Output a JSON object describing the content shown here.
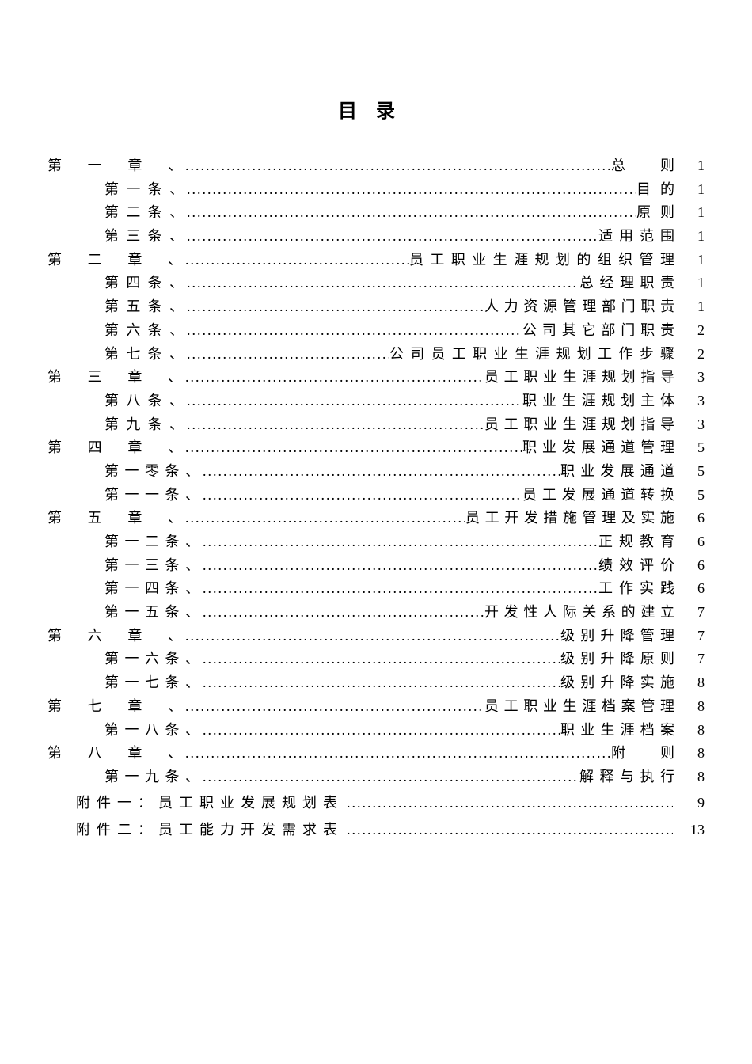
{
  "title": "目录",
  "entries": [
    {
      "indent": 0,
      "label": "第一章、",
      "label_width": 170,
      "suffix": "总　则",
      "suffix_width": 80,
      "page": "1"
    },
    {
      "indent": 1,
      "label": "第一条、",
      "label_width": 100,
      "suffix": "目的",
      "suffix_width": 48,
      "page": "1"
    },
    {
      "indent": 1,
      "label": "第二条、",
      "label_width": 100,
      "suffix": "原则",
      "suffix_width": 48,
      "page": "1"
    },
    {
      "indent": 1,
      "label": "第三条、",
      "label_width": 100,
      "suffix": "适用范围",
      "suffix_width": 96,
      "page": "1"
    },
    {
      "indent": 0,
      "label": "第二章、",
      "label_width": 170,
      "suffix": "员工职业生涯规划的组织管理",
      "suffix_width": 335,
      "page": "1"
    },
    {
      "indent": 1,
      "label": "第四条、",
      "label_width": 100,
      "suffix": "总经理职责",
      "suffix_width": 120,
      "page": "1"
    },
    {
      "indent": 1,
      "label": "第五条、",
      "label_width": 100,
      "suffix": "人力资源管理部门职责",
      "suffix_width": 240,
      "page": "1"
    },
    {
      "indent": 1,
      "label": "第六条、",
      "label_width": 100,
      "suffix": "公司其它部门职责",
      "suffix_width": 192,
      "page": "2"
    },
    {
      "indent": 1,
      "label": "第七条、",
      "label_width": 100,
      "suffix": "公司员工职业生涯规划工作步骤",
      "suffix_width": 360,
      "page": "2"
    },
    {
      "indent": 0,
      "label": "第三章、",
      "label_width": 170,
      "suffix": "员工职业生涯规划指导",
      "suffix_width": 240,
      "page": "3"
    },
    {
      "indent": 1,
      "label": "第八条、",
      "label_width": 100,
      "suffix": "职业生涯规划主体",
      "suffix_width": 192,
      "page": "3"
    },
    {
      "indent": 1,
      "label": "第九条、",
      "label_width": 100,
      "suffix": "员工职业生涯规划指导",
      "suffix_width": 240,
      "page": "3"
    },
    {
      "indent": 0,
      "label": "第四章、",
      "label_width": 170,
      "suffix": "职业发展通道管理",
      "suffix_width": 192,
      "page": "5"
    },
    {
      "indent": 1,
      "label": "第一零条、",
      "label_width": 120,
      "suffix": "职业发展通道",
      "suffix_width": 144,
      "page": "5"
    },
    {
      "indent": 1,
      "label": "第一一条、",
      "label_width": 120,
      "suffix": "员工发展通道转换",
      "suffix_width": 192,
      "page": "5"
    },
    {
      "indent": 0,
      "label": "第五章、",
      "label_width": 170,
      "suffix": "员工开发措施管理及实施",
      "suffix_width": 264,
      "page": "6"
    },
    {
      "indent": 1,
      "label": "第一二条、",
      "label_width": 120,
      "suffix": "正规教育",
      "suffix_width": 96,
      "page": "6"
    },
    {
      "indent": 1,
      "label": "第一三条、",
      "label_width": 120,
      "suffix": "绩效评价",
      "suffix_width": 96,
      "page": "6"
    },
    {
      "indent": 1,
      "label": "第一四条、",
      "label_width": 120,
      "suffix": "工作实践",
      "suffix_width": 96,
      "page": "6"
    },
    {
      "indent": 1,
      "label": "第一五条、",
      "label_width": 120,
      "suffix": "开发性人际关系的建立",
      "suffix_width": 240,
      "page": "7"
    },
    {
      "indent": 0,
      "label": "第六章、",
      "label_width": 170,
      "suffix": "级别升降管理",
      "suffix_width": 144,
      "page": "7"
    },
    {
      "indent": 1,
      "label": "第一六条、",
      "label_width": 120,
      "suffix": "级别升降原则",
      "suffix_width": 144,
      "page": "7"
    },
    {
      "indent": 1,
      "label": "第一七条、",
      "label_width": 120,
      "suffix": "级别升降实施",
      "suffix_width": 144,
      "page": "8"
    },
    {
      "indent": 0,
      "label": "第七章、",
      "label_width": 170,
      "suffix": "员工职业生涯档案管理",
      "suffix_width": 240,
      "page": "8"
    },
    {
      "indent": 1,
      "label": "第一八条、",
      "label_width": 120,
      "suffix": "职业生涯档案",
      "suffix_width": 144,
      "page": "8"
    },
    {
      "indent": 0,
      "label": "第八章、",
      "label_width": 170,
      "suffix": "附　则",
      "suffix_width": 80,
      "page": "8"
    },
    {
      "indent": 1,
      "label": "第一九条、",
      "label_width": 120,
      "suffix": "解释与执行",
      "suffix_width": 120,
      "page": "8"
    }
  ],
  "appendices": [
    {
      "label": "附件一：员工职业发展规划表",
      "page": "9"
    },
    {
      "label": "附件二：员工能力开发需求表",
      "page": "13"
    }
  ],
  "dots": "..............................................................................................................."
}
